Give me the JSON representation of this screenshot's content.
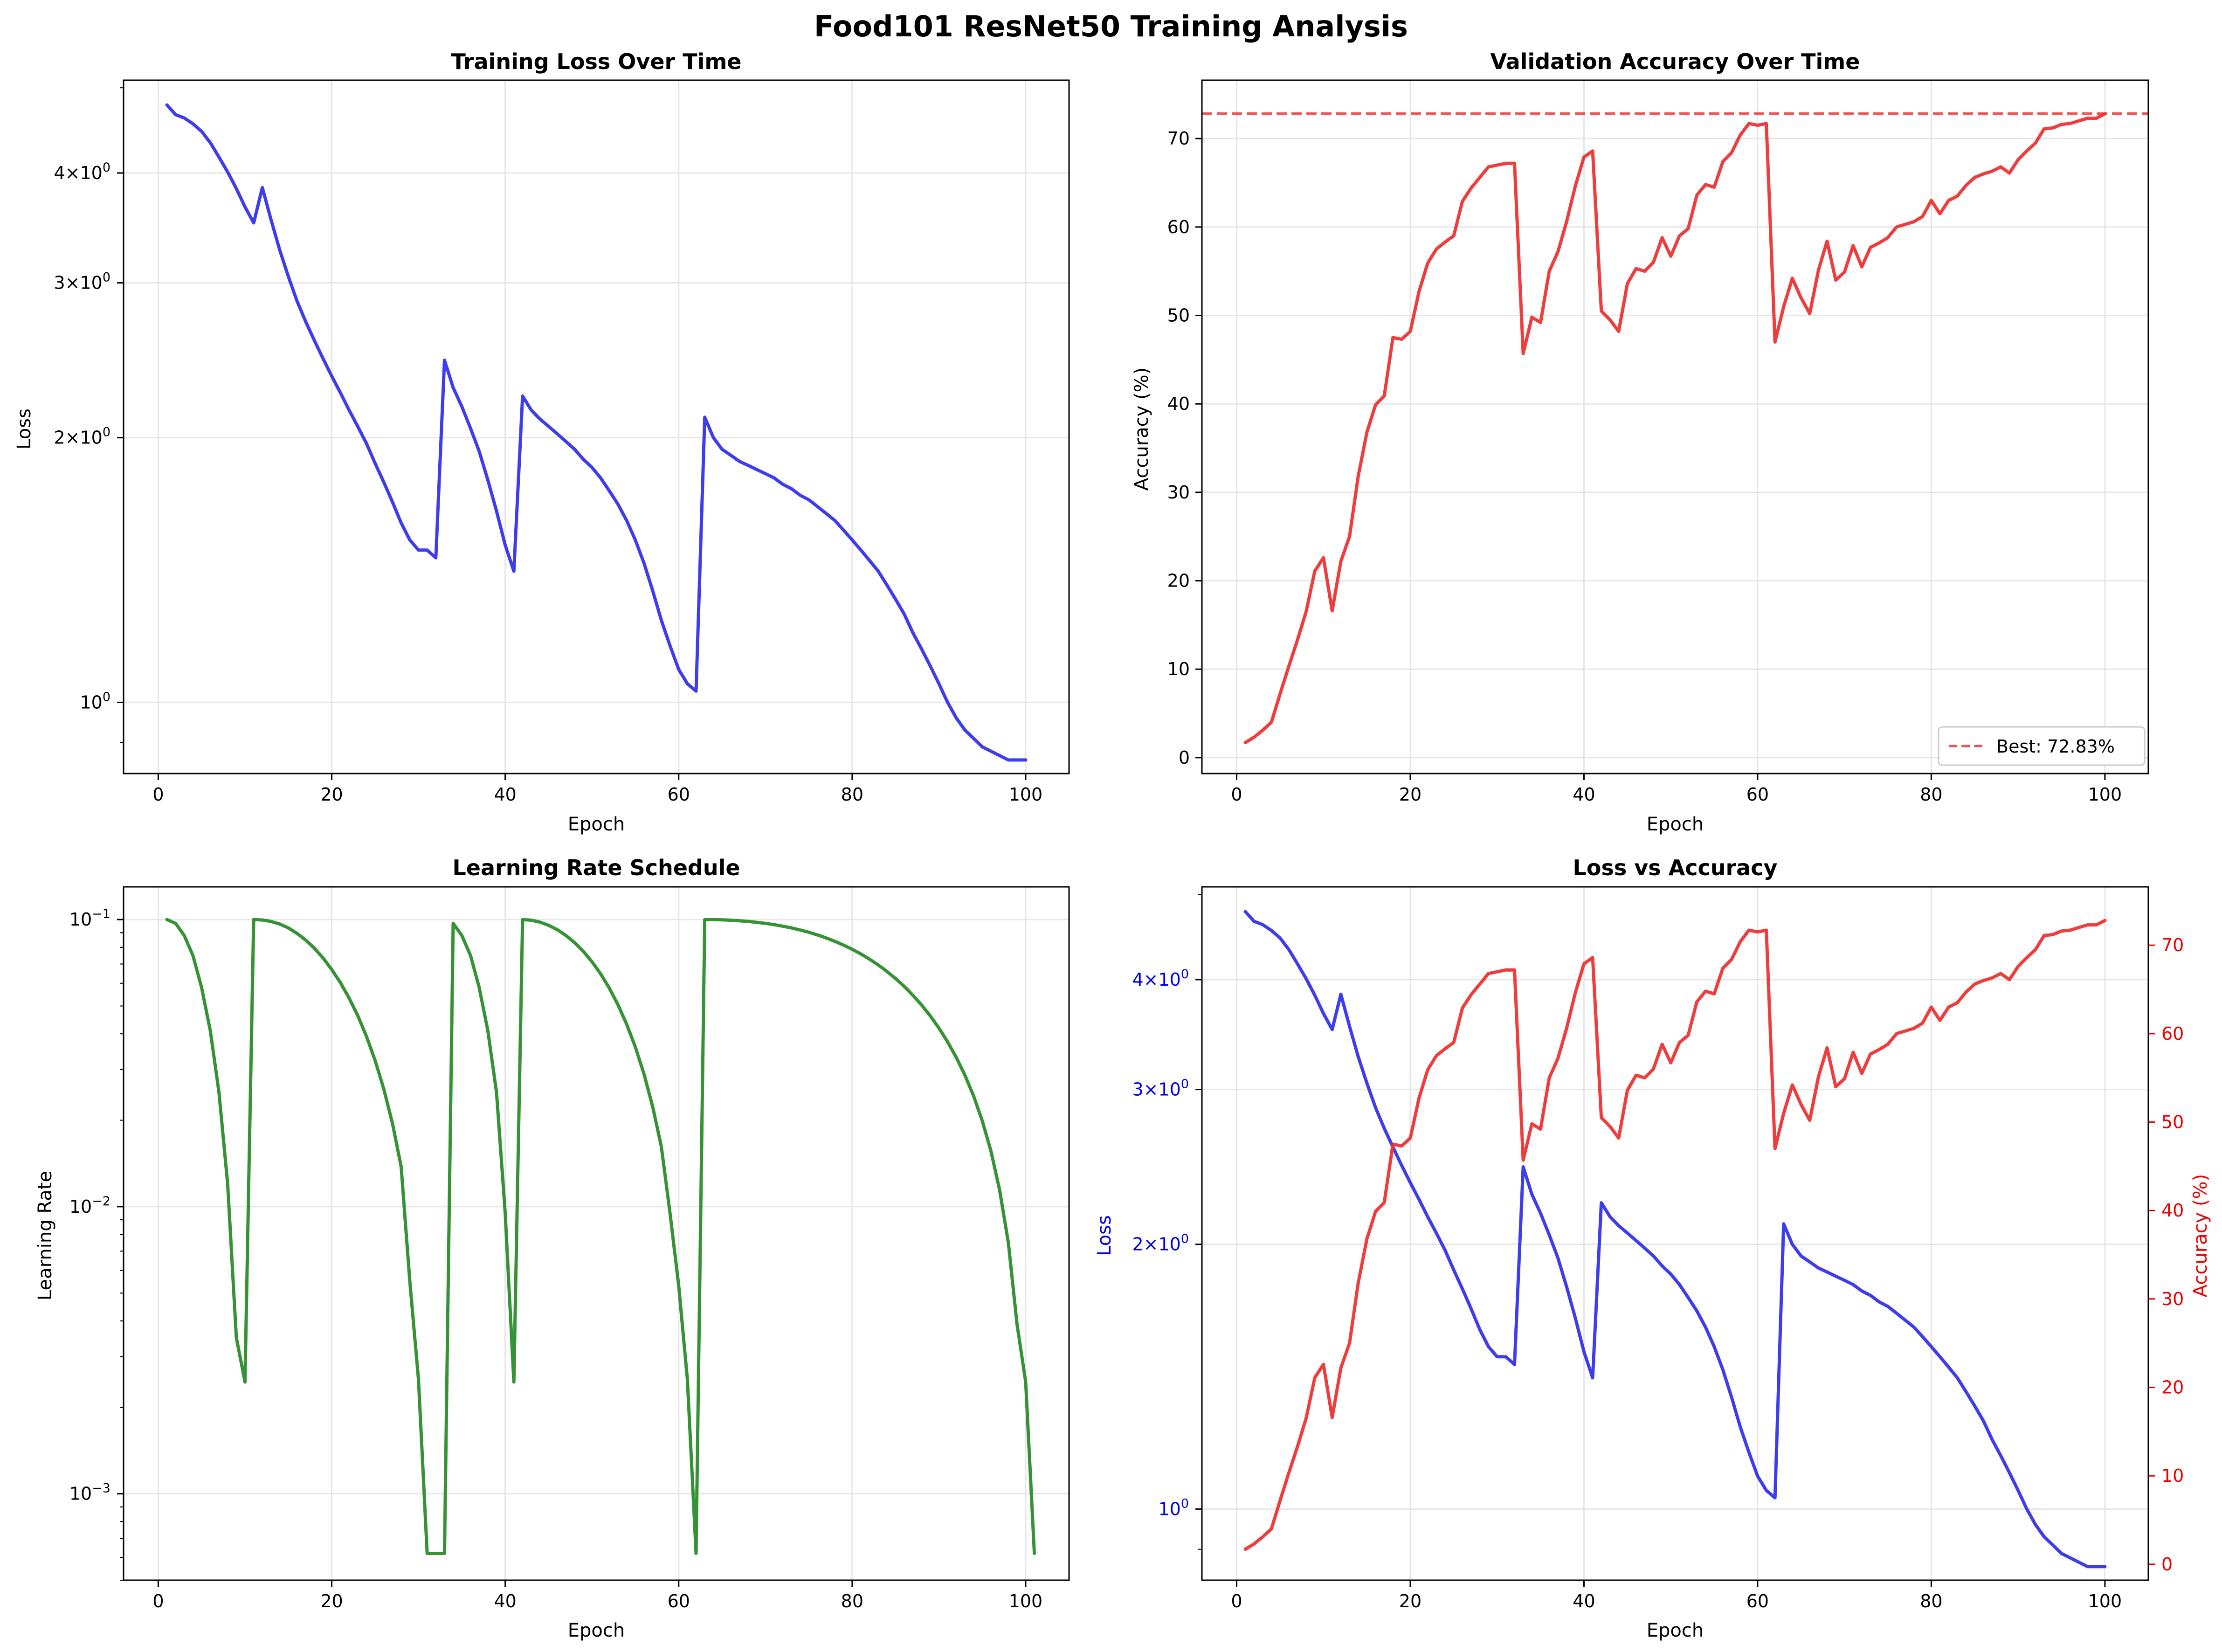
{
  "figure_title": "Food101 ResNet50 Training Analysis",
  "colors": {
    "loss": "#3333ee",
    "accuracy": "#ee3333",
    "lr": "#2a8c2a",
    "grid": "#e6e6e6"
  },
  "chart_data": [
    {
      "id": "loss",
      "type": "line",
      "title": "Training Loss Over Time",
      "xlabel": "Epoch",
      "ylabel": "Loss",
      "yscale": "log",
      "xlim": [
        -4,
        105
      ],
      "ylim": [
        0.83,
        5.1
      ],
      "xticks": [
        0,
        20,
        40,
        60,
        80,
        100
      ],
      "yticks": [
        {
          "value": 1,
          "base": "10",
          "exp": "0"
        },
        {
          "value": 2,
          "base": "2×10",
          "exp": "0"
        },
        {
          "value": 3,
          "base": "3×10",
          "exp": "0"
        },
        {
          "value": 4,
          "base": "4×10",
          "exp": "0"
        }
      ],
      "grid": true,
      "series": [
        {
          "color": "#3333ee",
          "x_start": 1,
          "values": [
            4.78,
            4.66,
            4.62,
            4.55,
            4.46,
            4.33,
            4.17,
            4.01,
            3.84,
            3.66,
            3.51,
            3.85,
            3.54,
            3.27,
            3.05,
            2.86,
            2.71,
            2.58,
            2.46,
            2.35,
            2.25,
            2.15,
            2.06,
            1.97,
            1.87,
            1.78,
            1.69,
            1.6,
            1.53,
            1.49,
            1.49,
            1.46,
            2.45,
            2.28,
            2.17,
            2.05,
            1.93,
            1.79,
            1.65,
            1.51,
            1.41,
            2.23,
            2.15,
            2.1,
            2.06,
            2.02,
            1.98,
            1.94,
            1.89,
            1.85,
            1.8,
            1.74,
            1.68,
            1.61,
            1.53,
            1.44,
            1.34,
            1.24,
            1.16,
            1.09,
            1.05,
            1.03,
            2.11,
            2.0,
            1.94,
            1.91,
            1.88,
            1.86,
            1.84,
            1.82,
            1.8,
            1.77,
            1.75,
            1.72,
            1.7,
            1.67,
            1.64,
            1.61,
            1.57,
            1.53,
            1.49,
            1.45,
            1.41,
            1.36,
            1.31,
            1.26,
            1.2,
            1.15,
            1.1,
            1.05,
            1.0,
            0.96,
            0.93,
            0.91,
            0.89,
            0.88,
            0.87,
            0.86,
            0.86,
            0.86
          ]
        }
      ]
    },
    {
      "id": "accuracy",
      "type": "line",
      "title": "Validation Accuracy Over Time",
      "xlabel": "Epoch",
      "ylabel": "Accuracy (%)",
      "yscale": "linear",
      "xlim": [
        -4,
        105
      ],
      "ylim": [
        -1.8,
        76.6
      ],
      "xticks": [
        0,
        20,
        40,
        60,
        80,
        100
      ],
      "yticks": [
        0,
        10,
        20,
        30,
        40,
        50,
        60,
        70
      ],
      "grid": true,
      "legend": {
        "entries": [
          "Best: 72.83%"
        ],
        "placement": "lower-right"
      },
      "reference_line": {
        "y": 72.83,
        "style": "dashed",
        "label": "Best: 72.83%"
      },
      "series": [
        {
          "color": "#ee3333",
          "x_start": 1,
          "values": [
            1.7,
            2.3,
            3.1,
            4.0,
            7.2,
            10.3,
            13.3,
            16.5,
            21.1,
            22.6,
            16.6,
            22.2,
            25.0,
            31.8,
            36.8,
            39.9,
            40.9,
            47.5,
            47.3,
            48.2,
            52.7,
            55.9,
            57.5,
            58.3,
            59.0,
            62.9,
            64.4,
            65.6,
            66.8,
            67.0,
            67.2,
            67.2,
            45.7,
            49.8,
            49.2,
            55.0,
            57.2,
            60.6,
            64.6,
            67.9,
            68.6,
            50.5,
            49.5,
            48.2,
            53.6,
            55.3,
            55.0,
            56.0,
            58.8,
            56.7,
            59.0,
            59.8,
            63.6,
            64.8,
            64.5,
            67.4,
            68.4,
            70.4,
            71.7,
            71.5,
            71.7,
            47.0,
            51.0,
            54.2,
            52.0,
            50.2,
            55.1,
            58.4,
            54.0,
            54.9,
            57.9,
            55.5,
            57.7,
            58.2,
            58.8,
            60.0,
            60.3,
            60.6,
            61.2,
            63.0,
            61.5,
            63.0,
            63.5,
            64.7,
            65.6,
            66.0,
            66.3,
            66.8,
            66.1,
            67.6,
            68.6,
            69.5,
            71.1,
            71.2,
            71.6,
            71.7,
            72.0,
            72.3,
            72.3,
            72.8
          ]
        }
      ]
    },
    {
      "id": "lr",
      "type": "line",
      "title": "Learning Rate Schedule",
      "xlabel": "Epoch",
      "ylabel": "Learning Rate",
      "yscale": "log",
      "xlim": [
        -4,
        105
      ],
      "ylim": [
        0.0005,
        0.13
      ],
      "xticks": [
        0,
        20,
        40,
        60,
        80,
        100
      ],
      "yticks": [
        {
          "value": 0.001,
          "base": "10",
          "exp": "−3"
        },
        {
          "value": 0.01,
          "base": "10",
          "exp": "−2"
        },
        {
          "value": 0.1,
          "base": "10",
          "exp": "−1"
        }
      ],
      "grid": true,
      "series": [
        {
          "color": "#2a8c2a",
          "x_start": 1,
          "values": [
            0.1,
            0.097,
            0.088,
            0.075,
            0.058,
            0.041,
            0.025,
            0.012,
            0.0035,
            0.00245,
            0.1,
            0.0997,
            0.0985,
            0.0965,
            0.0935,
            0.0895,
            0.0848,
            0.0795,
            0.0735,
            0.067,
            0.0603,
            0.0533,
            0.0463,
            0.0392,
            0.0323,
            0.0257,
            0.0195,
            0.0138,
            0.0055,
            0.0025,
            0.00062,
            0.00062,
            0.00062,
            0.097,
            0.088,
            0.075,
            0.058,
            0.041,
            0.025,
            0.0095,
            0.00245,
            0.1,
            0.0995,
            0.098,
            0.0955,
            0.0922,
            0.088,
            0.0831,
            0.0775,
            0.0713,
            0.0647,
            0.0577,
            0.0505,
            0.0432,
            0.036,
            0.029,
            0.0223,
            0.0162,
            0.0095,
            0.0053,
            0.0025,
            0.00062,
            0.1,
            0.1,
            0.0998,
            0.0995,
            0.099,
            0.0985,
            0.0978,
            0.097,
            0.096,
            0.0948,
            0.0935,
            0.092,
            0.0903,
            0.0884,
            0.0863,
            0.084,
            0.0815,
            0.0788,
            0.0759,
            0.0728,
            0.0695,
            0.066,
            0.0623,
            0.0585,
            0.0545,
            0.0504,
            0.0462,
            0.0419,
            0.0375,
            0.0331,
            0.0287,
            0.0243,
            0.0199,
            0.0156,
            0.0114,
            0.0075,
            0.0039,
            0.00245,
            0.00062
          ]
        }
      ]
    },
    {
      "id": "loss_vs_acc",
      "type": "line",
      "title": "Loss vs Accuracy",
      "xlabel": "Epoch",
      "ylabel": "Loss",
      "ylabel_right": "Accuracy (%)",
      "yscale": "log",
      "xlim": [
        -4,
        105
      ],
      "ylim": [
        0.83,
        5.1
      ],
      "ylim_right": [
        -1.8,
        76.6
      ],
      "xticks": [
        0,
        20,
        40,
        60,
        80,
        100
      ],
      "yticks": [
        {
          "value": 1,
          "base": "10",
          "exp": "0"
        },
        {
          "value": 2,
          "base": "2×10",
          "exp": "0"
        },
        {
          "value": 3,
          "base": "3×10",
          "exp": "0"
        },
        {
          "value": 4,
          "base": "4×10",
          "exp": "0"
        }
      ],
      "yticks_right": [
        0,
        10,
        20,
        30,
        40,
        50,
        60,
        70
      ],
      "grid": true,
      "series_ref": [
        "loss",
        "accuracy"
      ]
    }
  ]
}
